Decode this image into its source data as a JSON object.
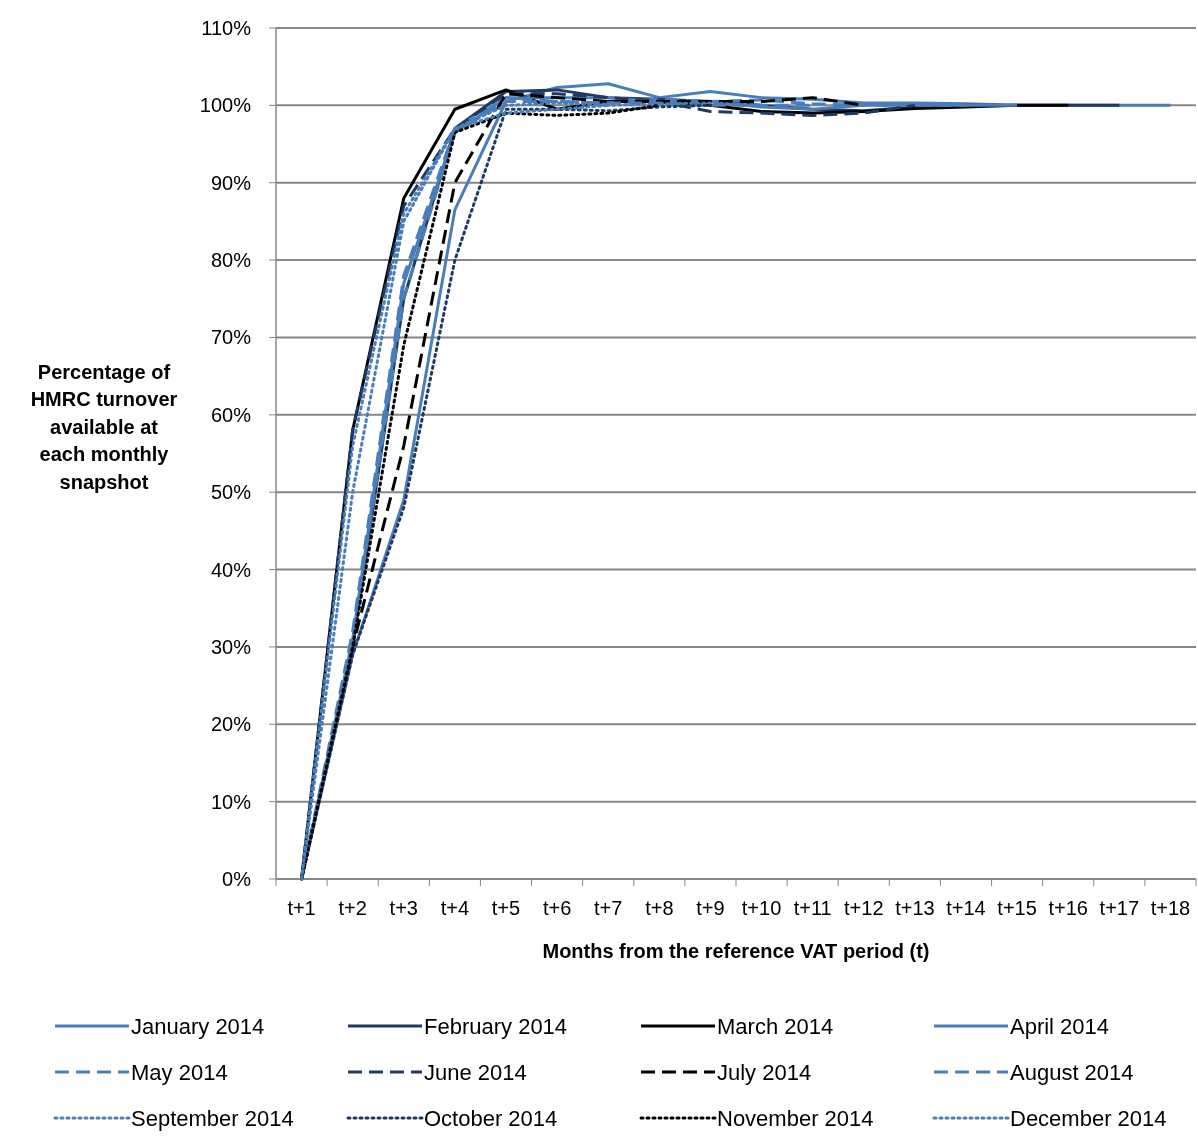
{
  "chart_data": {
    "type": "line",
    "xlabel": "Months from the reference VAT period (t)",
    "ylabel": "Percentage of HMRC turnover available at each monthly snapshot",
    "categories": [
      "t+1",
      "t+2",
      "t+3",
      "t+4",
      "t+5",
      "t+6",
      "t+7",
      "t+8",
      "t+9",
      "t+10",
      "t+11",
      "t+12",
      "t+13",
      "t+14",
      "t+15",
      "t+16",
      "t+17",
      "t+18"
    ],
    "ylim": [
      0,
      110
    ],
    "yticks": [
      {
        "value": 0,
        "label": "0%"
      },
      {
        "value": 10,
        "label": "10%"
      },
      {
        "value": 20,
        "label": "20%"
      },
      {
        "value": 30,
        "label": "30%"
      },
      {
        "value": 40,
        "label": "40%"
      },
      {
        "value": 50,
        "label": "50%"
      },
      {
        "value": 60,
        "label": "60%"
      },
      {
        "value": 70,
        "label": "70%"
      },
      {
        "value": 80,
        "label": "80%"
      },
      {
        "value": 90,
        "label": "90%"
      },
      {
        "value": 100,
        "label": "100%"
      },
      {
        "value": 110,
        "label": "110%"
      }
    ],
    "grid": "y",
    "legend": "bottom",
    "marker": "none",
    "series": [
      {
        "name": "January 2014",
        "color": "#4a7ebb",
        "line_style": "solid",
        "values": [
          0,
          29,
          49,
          86.5,
          100.5,
          102.3,
          102.8,
          101,
          101.8,
          101,
          100.8,
          100.3,
          100.3,
          100.2,
          100,
          100,
          100,
          100
        ]
      },
      {
        "name": "February 2014",
        "color": "#1f3a60",
        "line_style": "solid",
        "values": [
          0,
          30,
          75,
          97,
          101.8,
          102,
          101,
          100.8,
          100.5,
          100,
          99.5,
          99.3,
          99.8,
          100,
          100,
          100,
          100,
          null
        ]
      },
      {
        "name": "March 2014",
        "color": "#000000",
        "line_style": "solid",
        "values": [
          0,
          58,
          88,
          99.5,
          102,
          99.5,
          100.5,
          100.5,
          100,
          99.2,
          99,
          99.2,
          99.6,
          99.8,
          100,
          100,
          null,
          null
        ]
      },
      {
        "name": "April 2014",
        "color": "#4a7ebb",
        "line_style": "solid",
        "values": [
          0,
          31,
          77,
          96.5,
          101,
          101,
          101,
          100.5,
          100.5,
          99.8,
          99.5,
          100,
          100,
          100,
          100,
          null,
          null,
          null
        ]
      },
      {
        "name": "May 2014",
        "color": "#4a7ebb",
        "line_style": "dashed",
        "values": [
          0,
          32,
          78,
          97,
          101,
          100.5,
          100.3,
          100.8,
          100.5,
          100.7,
          100.2,
          100,
          100,
          100,
          null,
          null,
          null,
          null
        ]
      },
      {
        "name": "June 2014",
        "color": "#1f3a60",
        "line_style": "dashed",
        "values": [
          0,
          58,
          87,
          97,
          101.5,
          101.5,
          101,
          100.5,
          99.2,
          99,
          98.7,
          99,
          100,
          null,
          null,
          null,
          null,
          null
        ]
      },
      {
        "name": "July 2014",
        "color": "#000000",
        "line_style": "dashed",
        "values": [
          0,
          30,
          56,
          90,
          101.5,
          101,
          100.5,
          100.5,
          100.5,
          100.5,
          101,
          100,
          null,
          null,
          null,
          null,
          null,
          null
        ]
      },
      {
        "name": "August 2014",
        "color": "#4a7ebb",
        "line_style": "dashed",
        "values": [
          0,
          31,
          75,
          96.5,
          100.5,
          100.5,
          100.3,
          100.3,
          100,
          100,
          100,
          null,
          null,
          null,
          null,
          null,
          null,
          null
        ]
      },
      {
        "name": "September 2014",
        "color": "#4a7ebb",
        "line_style": "dotted",
        "values": [
          0,
          56,
          86,
          97,
          100,
          100.3,
          100,
          100.2,
          100.3,
          100,
          null,
          null,
          null,
          null,
          null,
          null,
          null,
          null
        ]
      },
      {
        "name": "October 2014",
        "color": "#1f3a60",
        "line_style": "dotted",
        "values": [
          0,
          29,
          48,
          80,
          99.5,
          99.5,
          99.3,
          99.8,
          100,
          null,
          null,
          null,
          null,
          null,
          null,
          null,
          null,
          null
        ]
      },
      {
        "name": "November 2014",
        "color": "#000000",
        "line_style": "dotted",
        "values": [
          0,
          30,
          69,
          96.5,
          99,
          98.7,
          99,
          100,
          null,
          null,
          null,
          null,
          null,
          null,
          null,
          null,
          null,
          null
        ]
      },
      {
        "name": "December 2014",
        "color": "#4a7ebb",
        "line_style": "dotted",
        "values": [
          0,
          50,
          85,
          97,
          99,
          99.5,
          100,
          null,
          null,
          null,
          null,
          null,
          null,
          null,
          null,
          null,
          null,
          null
        ]
      }
    ]
  }
}
